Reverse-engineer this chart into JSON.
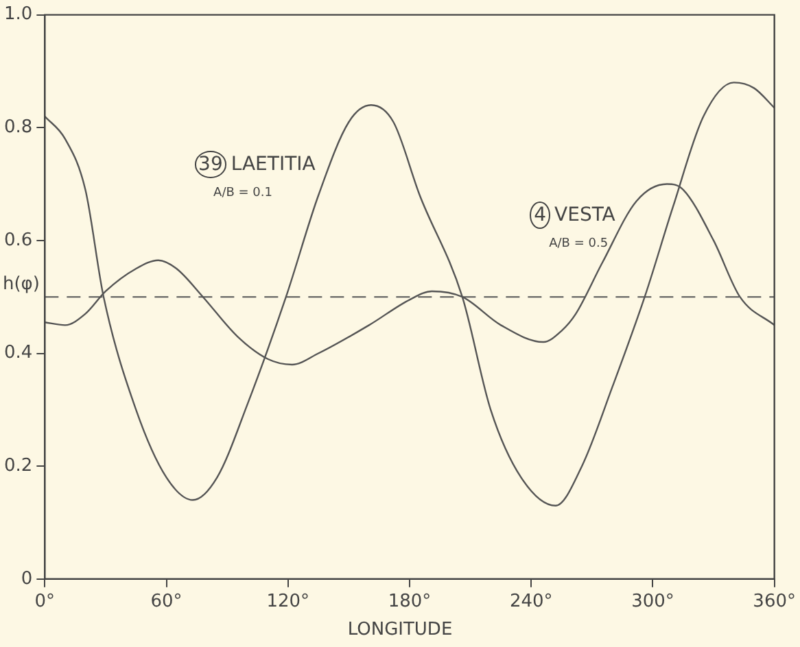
{
  "chart_data": {
    "type": "line",
    "xlabel": "LONGITUDE",
    "ylabel": "h(φ)",
    "xlim": [
      0,
      360
    ],
    "xticks": [
      {
        "value": 0,
        "label": "0°"
      },
      {
        "value": 60,
        "label": "60°"
      },
      {
        "value": 120,
        "label": "120°"
      },
      {
        "value": 180,
        "label": "180°"
      },
      {
        "value": 240,
        "label": "240°"
      },
      {
        "value": 300,
        "label": "300°"
      },
      {
        "value": 360,
        "label": "360°"
      }
    ],
    "ylim": [
      0,
      1
    ],
    "yticks": [
      0,
      0.2,
      0.4,
      0.6,
      0.8,
      {
        "value": 1,
        "label": "1.0"
      }
    ],
    "grid": false,
    "legend": false,
    "marker": "none",
    "line_style": "solid",
    "series": [
      {
        "name": "39 LAETITIA",
        "color": "#555555",
        "x": [
          0,
          10,
          20,
          29,
          45,
          60,
          73,
          85,
          100,
          119,
          135,
          150,
          161,
          172,
          185,
          206,
          220,
          235,
          252,
          265,
          280,
          296,
          310,
          325,
          340,
          350,
          360
        ],
        "values": [
          0.82,
          0.78,
          0.69,
          0.5,
          0.3,
          0.18,
          0.14,
          0.18,
          0.31,
          0.5,
          0.68,
          0.81,
          0.84,
          0.81,
          0.68,
          0.5,
          0.3,
          0.18,
          0.13,
          0.2,
          0.34,
          0.5,
          0.66,
          0.82,
          0.88,
          0.87,
          0.835
        ]
      },
      {
        "name": "4 VESTA",
        "color": "#555555",
        "x": [
          0,
          10,
          20,
          30,
          45,
          56,
          65,
          78,
          95,
          110,
          122,
          135,
          160,
          180,
          191,
          206,
          225,
          246,
          255,
          262,
          275,
          292,
          307,
          315,
          330,
          343,
          360
        ],
        "values": [
          0.455,
          0.45,
          0.47,
          0.51,
          0.55,
          0.565,
          0.55,
          0.5,
          0.43,
          0.39,
          0.38,
          0.4,
          0.45,
          0.495,
          0.51,
          0.5,
          0.45,
          0.42,
          0.44,
          0.47,
          0.56,
          0.67,
          0.7,
          0.69,
          0.6,
          0.5,
          0.45
        ]
      }
    ],
    "ref_lines": [
      {
        "axis": "y",
        "value": 0.5,
        "line_style": "dashed",
        "color": "#555555"
      }
    ],
    "annotations": [
      "A/B = 0.1",
      "A/B = 0.5"
    ]
  }
}
